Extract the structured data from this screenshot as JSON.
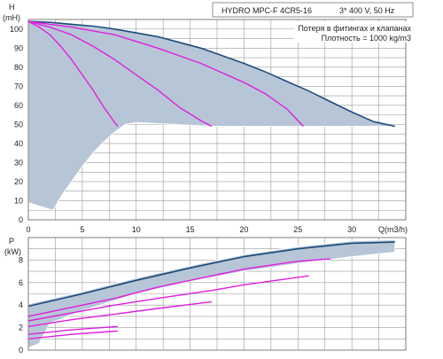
{
  "header": {
    "model": "HYDRO MPC-F 4CR5-16",
    "supply": "3* 400 V, 50 Hz",
    "note_1": "Потеря в фитингах и клапанах",
    "note_2": "Плотность = 1000 kg/m3"
  },
  "colors": {
    "band_fill": "#b7c6d6",
    "band_outline": "#ffffff",
    "max_curve": "#1b4a7a",
    "system_curve": "#e01ee0",
    "grid": "#9a9a9a"
  },
  "chart_data": [
    {
      "type": "line",
      "name": "head",
      "ylabel": "H",
      "yunit": "(mH)",
      "xlabel": "Q(m3/h)",
      "xlim": [
        0,
        35
      ],
      "ylim": [
        0,
        105
      ],
      "xticks": [
        0,
        5,
        10,
        15,
        20,
        25,
        30
      ],
      "yticks": [
        0,
        10,
        20,
        30,
        40,
        50,
        60,
        70,
        80,
        90,
        100
      ],
      "grid": true,
      "series": [
        {
          "role": "max",
          "points": [
            [
              0,
              104
            ],
            [
              2,
              103.5
            ],
            [
              4,
              102.5
            ],
            [
              6,
              101.5
            ],
            [
              8,
              100
            ],
            [
              10,
              98
            ],
            [
              12,
              96
            ],
            [
              14,
              93
            ],
            [
              16,
              90
            ],
            [
              18,
              86
            ],
            [
              20,
              82
            ],
            [
              22,
              77.5
            ],
            [
              24,
              72.5
            ],
            [
              26,
              67.5
            ],
            [
              28,
              62
            ],
            [
              30,
              56.5
            ],
            [
              32,
              51.5
            ],
            [
              34,
              49
            ]
          ]
        },
        {
          "role": "system",
          "points": [
            [
              0,
              104
            ],
            [
              1,
              101
            ],
            [
              2,
              97
            ],
            [
              3,
              91
            ],
            [
              4,
              84
            ],
            [
              5,
              76
            ],
            [
              6,
              68
            ],
            [
              7,
              59
            ],
            [
              8,
              51
            ],
            [
              8.3,
              49
            ]
          ]
        },
        {
          "role": "system",
          "points": [
            [
              0,
              104
            ],
            [
              2,
              101
            ],
            [
              4,
              97
            ],
            [
              6,
              91
            ],
            [
              8,
              84
            ],
            [
              10,
              76
            ],
            [
              12,
              68
            ],
            [
              14,
              59
            ],
            [
              16,
              52
            ],
            [
              17,
              49
            ]
          ]
        },
        {
          "role": "system",
          "points": [
            [
              0,
              104
            ],
            [
              4,
              101
            ],
            [
              8,
              97
            ],
            [
              12,
              90
            ],
            [
              16,
              82
            ],
            [
              20,
              72
            ],
            [
              22,
              66
            ],
            [
              24,
              58
            ],
            [
              25.5,
              49
            ]
          ]
        }
      ],
      "operating_band": {
        "upper": [
          [
            0,
            104
          ],
          [
            4,
            102.5
          ],
          [
            8,
            100
          ],
          [
            12,
            96
          ],
          [
            16,
            90
          ],
          [
            20,
            82
          ],
          [
            24,
            72.5
          ],
          [
            28,
            62
          ],
          [
            32,
            51.5
          ],
          [
            34,
            49
          ]
        ],
        "right_edge": [
          [
            34,
            49
          ],
          [
            17,
            49
          ],
          [
            10,
            51
          ],
          [
            9,
            50
          ]
        ],
        "lower": [
          [
            9,
            50
          ],
          [
            8,
            46
          ],
          [
            7,
            41
          ],
          [
            6,
            35
          ],
          [
            5,
            28
          ],
          [
            4,
            20
          ],
          [
            3,
            12
          ],
          [
            2.3,
            5
          ],
          [
            0,
            9
          ]
        ]
      }
    },
    {
      "type": "line",
      "name": "power",
      "ylabel": "P",
      "yunit": "(kW)",
      "xlim": [
        0,
        35
      ],
      "ylim": [
        0,
        10
      ],
      "yticks": [
        0,
        2,
        4,
        6,
        8
      ],
      "grid": true,
      "series": [
        {
          "role": "max",
          "points": [
            [
              0,
              3.9
            ],
            [
              5,
              5.0
            ],
            [
              10,
              6.2
            ],
            [
              15,
              7.3
            ],
            [
              20,
              8.3
            ],
            [
              25,
              9.0
            ],
            [
              30,
              9.5
            ],
            [
              34,
              9.6
            ]
          ]
        },
        {
          "role": "system",
          "points": [
            [
              0,
              3.0
            ],
            [
              8,
              4.6
            ],
            [
              12,
              5.6
            ],
            [
              17,
              6.6
            ],
            [
              20,
              7.2
            ],
            [
              25,
              7.9
            ],
            [
              28,
              8.1
            ]
          ]
        },
        {
          "role": "system",
          "points": [
            [
              0,
              2.6
            ],
            [
              4,
              3.3
            ],
            [
              8,
              4.0
            ],
            [
              12,
              4.6
            ],
            [
              17,
              5.3
            ],
            [
              20,
              5.8
            ],
            [
              26,
              6.6
            ]
          ]
        },
        {
          "role": "system",
          "points": [
            [
              0,
              2.1
            ],
            [
              4,
              2.7
            ],
            [
              8,
              3.2
            ],
            [
              12,
              3.7
            ],
            [
              17,
              4.3
            ]
          ]
        },
        {
          "role": "system",
          "points": [
            [
              0,
              1.4
            ],
            [
              4,
              1.8
            ],
            [
              8.3,
              2.1
            ]
          ]
        },
        {
          "role": "system",
          "points": [
            [
              0,
              1.0
            ],
            [
              4,
              1.4
            ],
            [
              8.3,
              1.7
            ]
          ]
        }
      ],
      "operating_band": {
        "upper": [
          [
            0,
            4.1
          ],
          [
            5,
            5.2
          ],
          [
            10,
            6.4
          ],
          [
            15,
            7.5
          ],
          [
            20,
            8.5
          ],
          [
            25,
            9.2
          ],
          [
            30,
            9.7
          ],
          [
            34,
            9.8
          ]
        ],
        "lower": [
          [
            34,
            8.7
          ],
          [
            30,
            8.3
          ],
          [
            25,
            7.7
          ],
          [
            20,
            7.0
          ],
          [
            15,
            6.1
          ],
          [
            10,
            5.0
          ],
          [
            5,
            3.5
          ],
          [
            2,
            2.4
          ],
          [
            1,
            0.6
          ],
          [
            0,
            0.2
          ]
        ]
      }
    }
  ]
}
